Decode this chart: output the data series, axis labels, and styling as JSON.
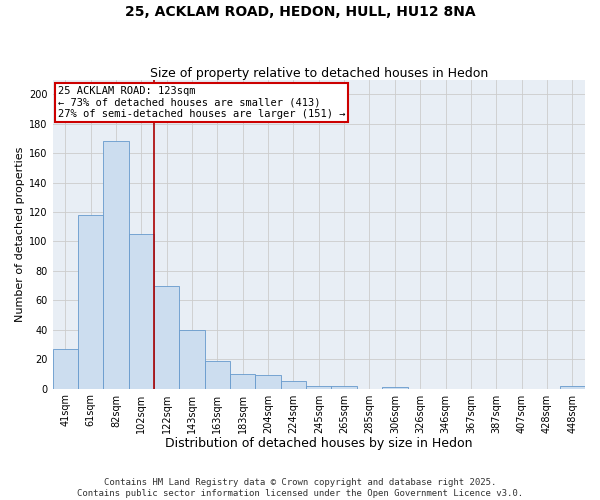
{
  "title": "25, ACKLAM ROAD, HEDON, HULL, HU12 8NA",
  "subtitle": "Size of property relative to detached houses in Hedon",
  "xlabel": "Distribution of detached houses by size in Hedon",
  "ylabel": "Number of detached properties",
  "categories": [
    "41sqm",
    "61sqm",
    "82sqm",
    "102sqm",
    "122sqm",
    "143sqm",
    "163sqm",
    "183sqm",
    "204sqm",
    "224sqm",
    "245sqm",
    "265sqm",
    "285sqm",
    "306sqm",
    "326sqm",
    "346sqm",
    "367sqm",
    "387sqm",
    "407sqm",
    "428sqm",
    "448sqm"
  ],
  "values": [
    27,
    118,
    168,
    105,
    70,
    40,
    19,
    10,
    9,
    5,
    2,
    2,
    0,
    1,
    0,
    0,
    0,
    0,
    0,
    0,
    2
  ],
  "bar_color": "#ccddef",
  "bar_edge_color": "#6699cc",
  "annotation_line1": "25 ACKLAM ROAD: 123sqm",
  "annotation_line2": "← 73% of detached houses are smaller (413)",
  "annotation_line3": "27% of semi-detached houses are larger (151) →",
  "annotation_box_color": "#ffffff",
  "annotation_box_edge_color": "#cc0000",
  "subject_vline_x": 3.5,
  "subject_vline_color": "#aa0000",
  "ylim": [
    0,
    210
  ],
  "yticks": [
    0,
    20,
    40,
    60,
    80,
    100,
    120,
    140,
    160,
    180,
    200
  ],
  "grid_color": "#cccccc",
  "plot_bg_color": "#e8eef5",
  "footer_line1": "Contains HM Land Registry data © Crown copyright and database right 2025.",
  "footer_line2": "Contains public sector information licensed under the Open Government Licence v3.0.",
  "title_fontsize": 10,
  "subtitle_fontsize": 9,
  "xlabel_fontsize": 9,
  "ylabel_fontsize": 8,
  "tick_fontsize": 7,
  "annotation_fontsize": 7.5,
  "footer_fontsize": 6.5
}
